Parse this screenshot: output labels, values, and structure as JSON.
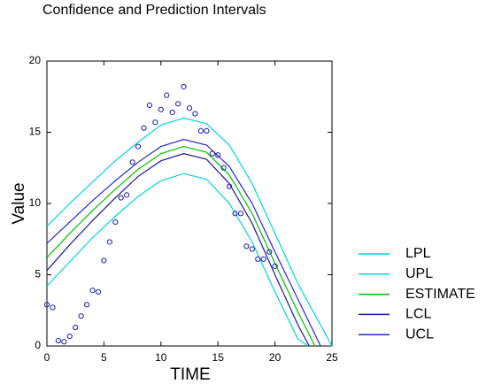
{
  "chart_data": {
    "type": "line",
    "title": "Confidence and Prediction Intervals",
    "x_label": "TIME",
    "y_label": "Value",
    "xlim": [
      0,
      25
    ],
    "ylim": [
      0,
      20
    ],
    "xticks": [
      0,
      5,
      10,
      15,
      20,
      25
    ],
    "yticks": [
      0,
      5,
      10,
      15,
      20
    ],
    "legend_position": "right",
    "scatter": {
      "color": "#1a1ab0",
      "x": [
        0,
        0.5,
        1,
        1.5,
        2,
        2.5,
        3,
        3.5,
        4,
        4.5,
        5,
        5.5,
        6,
        6.5,
        7,
        7.5,
        8,
        8.5,
        9,
        9.5,
        10,
        10.5,
        11,
        11.5,
        12,
        12.5,
        13,
        13.5,
        14,
        14.5,
        15,
        15.5,
        16,
        16.5,
        17,
        17.5,
        18,
        18.5,
        19,
        19.5,
        20
      ],
      "values": [
        2.9,
        2.7,
        0.37,
        0.3,
        0.68,
        1.3,
        2.1,
        2.9,
        3.9,
        3.8,
        6.0,
        7.3,
        8.7,
        10.4,
        10.6,
        12.9,
        14.0,
        15.3,
        16.9,
        15.7,
        16.6,
        17.6,
        16.4,
        17.0,
        18.2,
        16.7,
        16.3,
        15.1,
        15.1,
        13.5,
        13.4,
        12.5,
        11.2,
        9.3,
        9.3,
        7.0,
        6.8,
        6.1,
        6.1,
        6.6,
        5.6
      ]
    },
    "series": [
      {
        "name": "LPL",
        "color": "#00d4e0",
        "x": [
          0,
          2,
          4,
          6,
          8,
          10,
          12,
          14,
          16,
          18,
          20,
          22,
          22.9
        ],
        "values": [
          4.2,
          5.9,
          7.6,
          9.1,
          10.5,
          11.6,
          12.1,
          11.7,
          10.0,
          7.3,
          3.8,
          0.5,
          0
        ]
      },
      {
        "name": "UPL",
        "color": "#00d4e0",
        "x": [
          0,
          2,
          4,
          6,
          8,
          10,
          12,
          14,
          16,
          18,
          20,
          22,
          25
        ],
        "values": [
          8.4,
          10.0,
          11.5,
          13.0,
          14.3,
          15.5,
          16.0,
          15.6,
          14.1,
          11.4,
          7.9,
          4.4,
          0
        ]
      },
      {
        "name": "ESTIMATE",
        "color": "#00c000",
        "x": [
          0,
          2,
          4,
          6,
          8,
          10,
          12,
          14,
          16,
          18,
          20,
          22,
          23.5
        ],
        "values": [
          6.2,
          7.9,
          9.5,
          11.0,
          12.4,
          13.5,
          14.0,
          13.6,
          12.0,
          9.3,
          5.8,
          2.4,
          0
        ]
      },
      {
        "name": "LCL",
        "color": "#1a1a9a",
        "x": [
          0,
          2,
          4,
          6,
          8,
          10,
          12,
          14,
          16,
          18,
          20,
          22,
          23
        ],
        "values": [
          5.3,
          7.1,
          8.8,
          10.4,
          11.9,
          13.0,
          13.5,
          13.1,
          11.4,
          8.6,
          5.0,
          1.5,
          0
        ]
      },
      {
        "name": "UCL",
        "color": "#2828c8",
        "x": [
          0,
          2,
          4,
          6,
          8,
          10,
          12,
          14,
          16,
          18,
          20,
          22,
          24
        ],
        "values": [
          7.2,
          8.7,
          10.2,
          11.6,
          12.9,
          14.0,
          14.5,
          14.1,
          12.6,
          10.0,
          6.6,
          3.3,
          0
        ]
      }
    ]
  }
}
